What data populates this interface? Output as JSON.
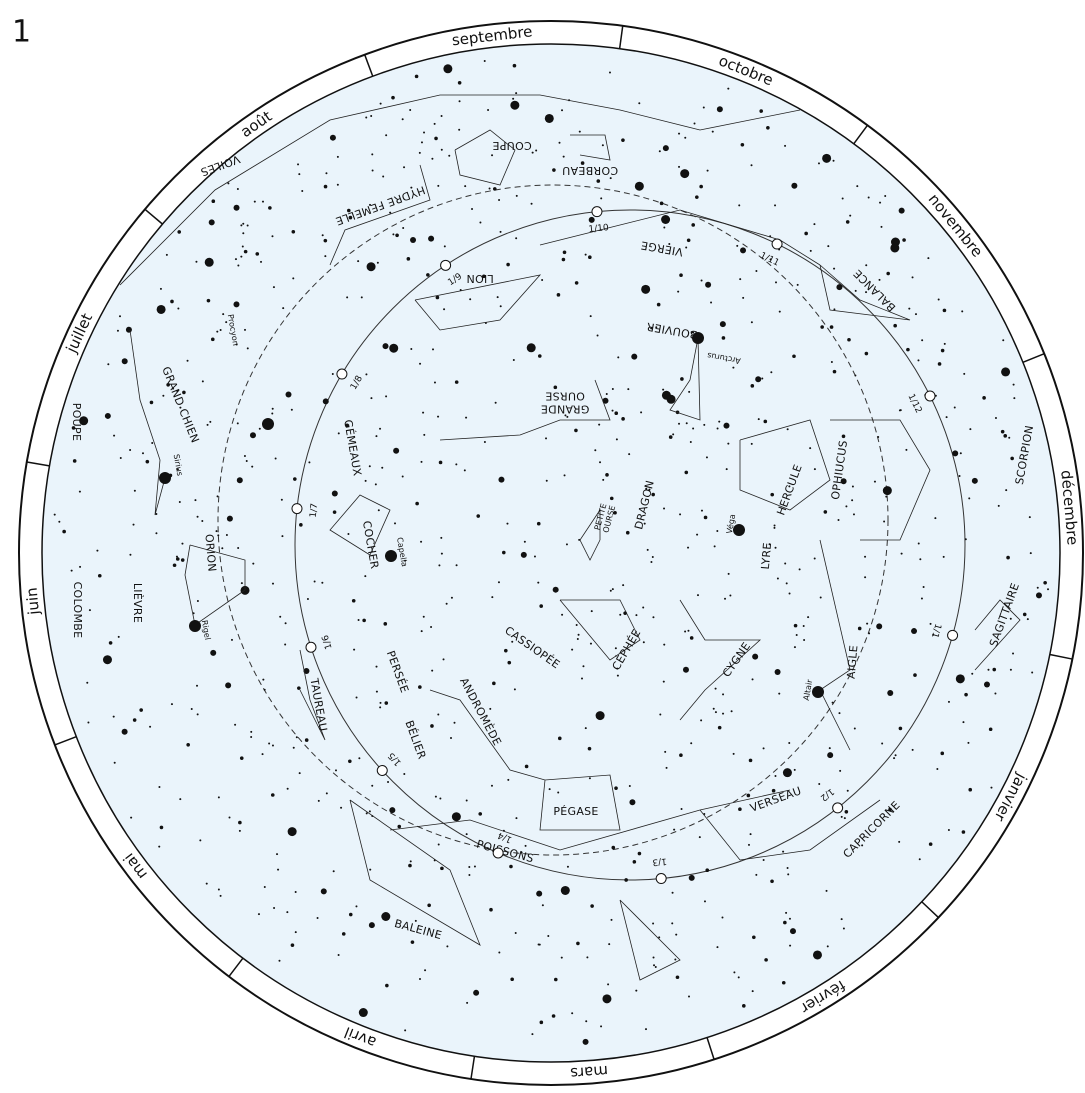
{
  "header": {
    "page_number": "1"
  },
  "months": [
    "septembre",
    "octobre",
    "novembre",
    "décembre",
    "janvier",
    "février",
    "mars",
    "avril",
    "mai",
    "juin",
    "juillet",
    "août"
  ],
  "constellations": [
    "VOILES",
    "HYDRE FEMELLE",
    "COUPE",
    "CORBEAU",
    "LION",
    "VIERGE",
    "BALANCE",
    "SCORPION",
    "BOUVIER",
    "POUPE",
    "GRAND CHIEN",
    "GÉMEAUX",
    "HERCULE",
    "OPHIUCUS",
    "DRAGON",
    "ORION",
    "COCHER",
    "COLOMBE",
    "LIÈVRE",
    "LYRE",
    "SAGITTAIRE",
    "CASSIOPÉE",
    "CÉPHÉE",
    "CYGNE",
    "AIGLE",
    "PERSÉE",
    "TAUREAU",
    "ANDROMÈDE",
    "BÉLIER",
    "PÉGASE",
    "POISSONS",
    "VERSEAU",
    "CAPRICORNE",
    "BALEINE"
  ],
  "multiline_constellations": [
    [
      "GRANDE",
      "OURSE"
    ],
    [
      "PETITE",
      "OURSE"
    ]
  ],
  "stars": [
    "Arcturus",
    "Sirius",
    "Procyon",
    "Capella",
    "Rigel",
    "Véga",
    "Altair"
  ],
  "date_marks": [
    "1/1",
    "1/2",
    "1/3",
    "1/4",
    "1/5",
    "1/6",
    "1/7",
    "1/8",
    "1/9",
    "1/10",
    "1/11",
    "1/12"
  ]
}
